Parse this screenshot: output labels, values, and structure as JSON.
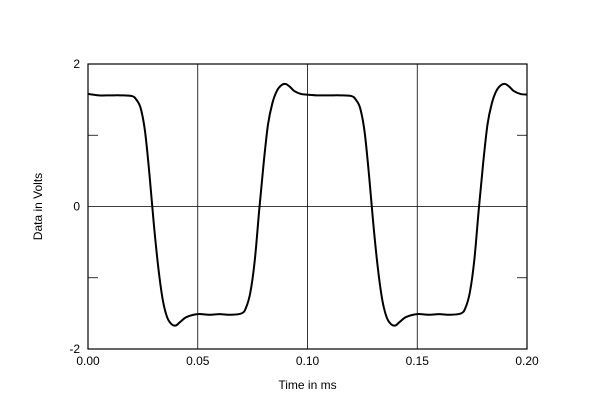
{
  "chart_data": {
    "type": "line",
    "title": "",
    "xlabel": "Time in ms",
    "ylabel": "Data in Volts",
    "xlim": [
      0.0,
      0.2
    ],
    "ylim": [
      -2,
      2
    ],
    "grid": true,
    "legend": "none",
    "x_ticks": [
      "0.00",
      "0.05",
      "0.10",
      "0.15",
      "0.20"
    ],
    "y_ticks": [
      "2",
      "0",
      "-2"
    ],
    "line_color": "#000000",
    "series": [
      {
        "x": [
          0.0,
          0.005,
          0.01,
          0.015,
          0.02,
          0.022,
          0.024,
          0.026,
          0.028,
          0.03,
          0.032,
          0.034,
          0.036,
          0.038,
          0.04,
          0.042,
          0.045,
          0.05,
          0.055,
          0.06,
          0.065,
          0.07,
          0.072,
          0.074,
          0.076,
          0.078,
          0.08,
          0.082,
          0.084,
          0.086,
          0.088,
          0.09,
          0.092,
          0.094,
          0.097,
          0.1,
          0.105,
          0.11,
          0.115,
          0.12,
          0.122,
          0.124,
          0.126,
          0.128,
          0.13,
          0.132,
          0.134,
          0.136,
          0.138,
          0.14,
          0.142,
          0.145,
          0.15,
          0.155,
          0.16,
          0.165,
          0.17,
          0.172,
          0.174,
          0.176,
          0.178,
          0.18,
          0.182,
          0.184,
          0.186,
          0.188,
          0.19,
          0.192,
          0.194,
          0.197,
          0.2
        ],
        "y": [
          1.58,
          1.56,
          1.56,
          1.56,
          1.55,
          1.5,
          1.38,
          1.05,
          0.45,
          -0.25,
          -0.85,
          -1.3,
          -1.55,
          -1.65,
          -1.67,
          -1.62,
          -1.55,
          -1.51,
          -1.52,
          -1.51,
          -1.52,
          -1.5,
          -1.42,
          -1.2,
          -0.75,
          -0.05,
          0.6,
          1.15,
          1.45,
          1.62,
          1.7,
          1.72,
          1.68,
          1.62,
          1.58,
          1.57,
          1.56,
          1.56,
          1.56,
          1.55,
          1.5,
          1.38,
          1.05,
          0.45,
          -0.25,
          -0.85,
          -1.3,
          -1.55,
          -1.65,
          -1.67,
          -1.62,
          -1.55,
          -1.51,
          -1.52,
          -1.51,
          -1.52,
          -1.5,
          -1.42,
          -1.2,
          -0.75,
          -0.05,
          0.6,
          1.15,
          1.45,
          1.62,
          1.7,
          1.72,
          1.68,
          1.62,
          1.58,
          1.57
        ]
      }
    ]
  }
}
